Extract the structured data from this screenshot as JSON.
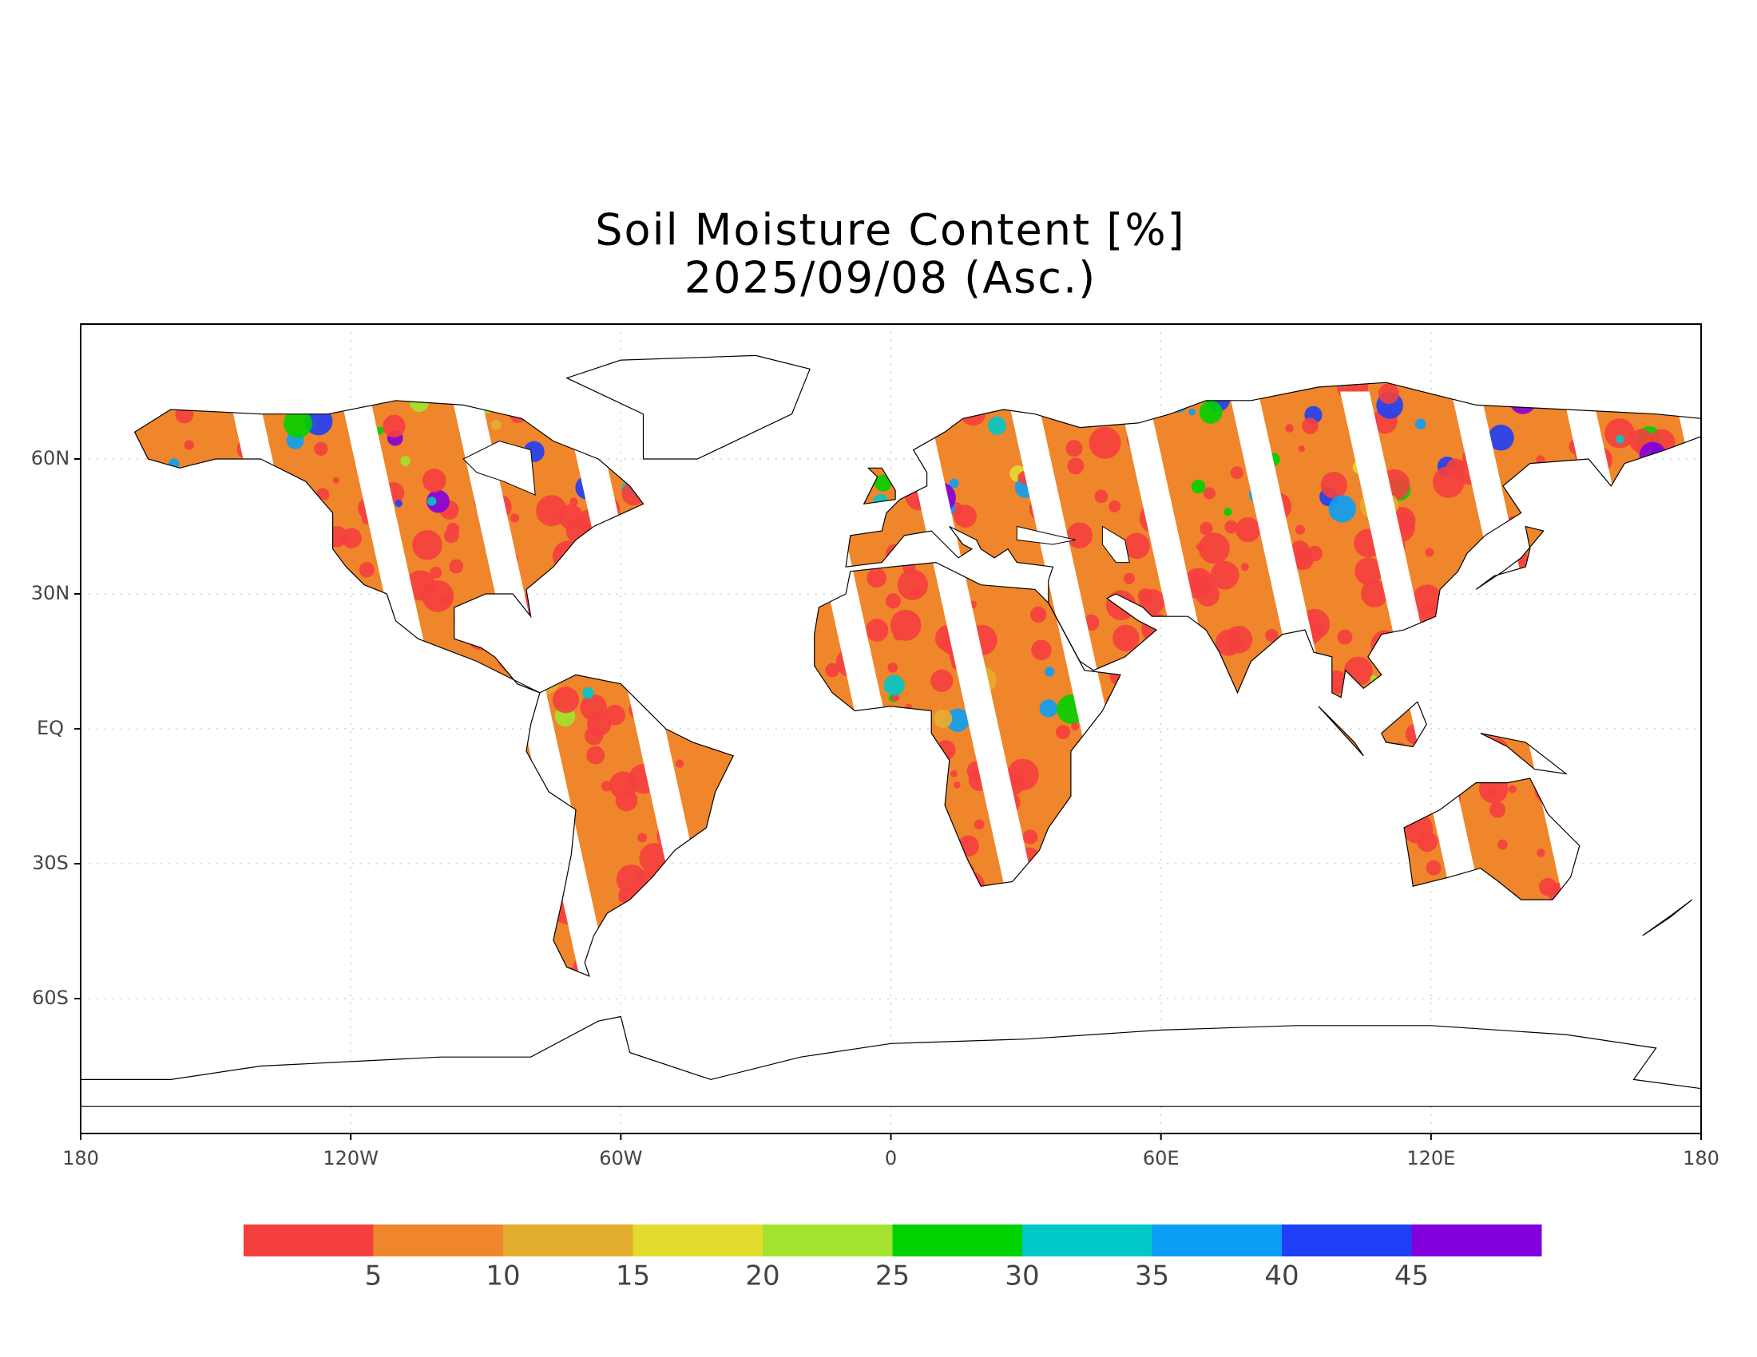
{
  "title": [
    "Soil Moisture Content [%]",
    "2025/09/08 (Asc.)"
  ],
  "map": {
    "xlim": [
      -180,
      180
    ],
    "ylim": [
      -90,
      90
    ],
    "xticks": [
      {
        "value": -180,
        "label": "180"
      },
      {
        "value": -120,
        "label": "120W"
      },
      {
        "value": -60,
        "label": "60W"
      },
      0,
      {
        "value": 60,
        "label": "60E"
      },
      {
        "value": 120,
        "label": "120E"
      },
      {
        "value": 180,
        "label": "180"
      }
    ],
    "yticks": [
      {
        "value": 60,
        "label": "60N"
      },
      {
        "value": 30,
        "label": "30N"
      },
      {
        "value": 0,
        "label": "EQ"
      },
      {
        "value": -30,
        "label": "30S"
      },
      {
        "value": -60,
        "label": "60S"
      }
    ],
    "grid": true
  },
  "colorbar": {
    "colors": [
      "#f53f3f",
      "#ef862b",
      "#e3ae30",
      "#e2dc2f",
      "#a3e32f",
      "#00d200",
      "#00c8c8",
      "#0a9ff5",
      "#1e3ff5",
      "#8200dc"
    ],
    "ticks": [
      5,
      10,
      15,
      20,
      25,
      30,
      35,
      40,
      45
    ]
  }
}
